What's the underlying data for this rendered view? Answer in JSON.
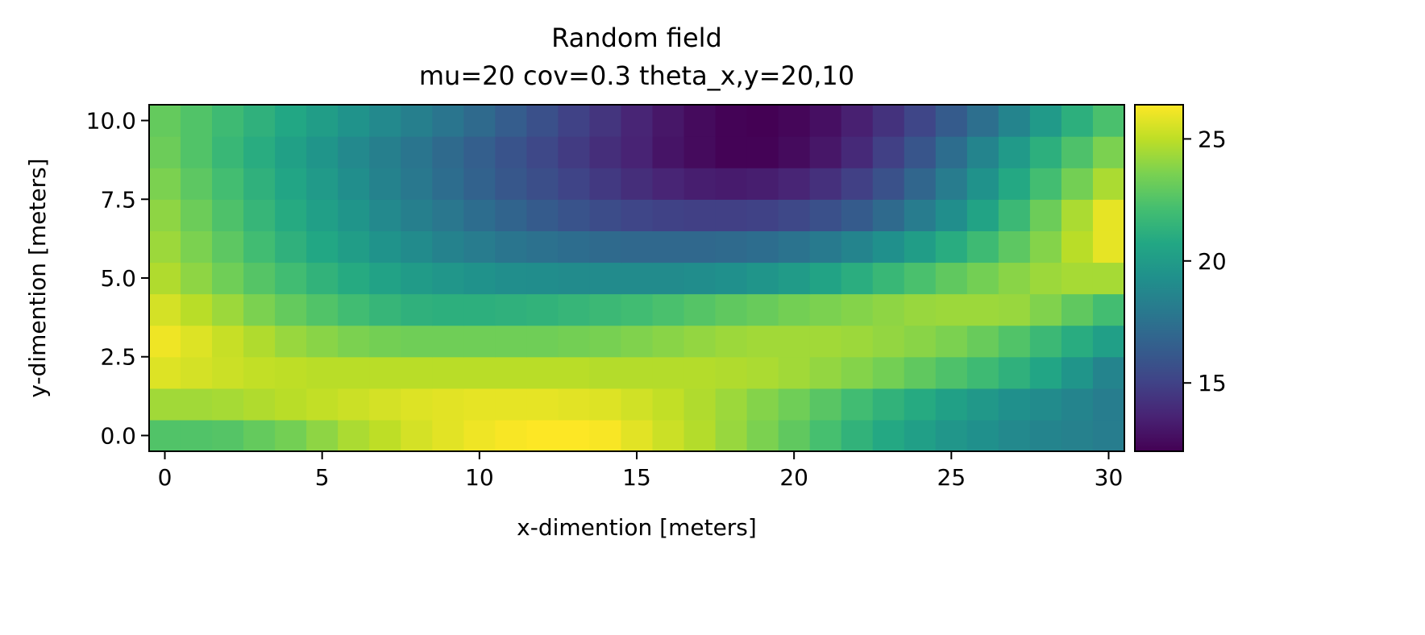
{
  "chart_data": {
    "type": "heatmap",
    "title": "Random field",
    "subtitle": "mu=20 cov=0.3 theta_x,y=20,10",
    "xlabel": "x-dimention [meters]",
    "ylabel": "y-dimention [meters]",
    "xlim": [
      -0.5,
      30.5
    ],
    "ylim": [
      -0.5,
      10.5
    ],
    "x_ticks": [
      0,
      5,
      10,
      15,
      20,
      25,
      30
    ],
    "x_tick_labels": [
      "0",
      "5",
      "10",
      "15",
      "20",
      "25",
      "30"
    ],
    "y_ticks": [
      0.0,
      2.5,
      5.0,
      7.5,
      10.0
    ],
    "y_tick_labels": [
      "0.0",
      "2.5",
      "5.0",
      "7.5",
      "10.0"
    ],
    "colormap": "viridis",
    "clim": [
      12.2,
      26.4
    ],
    "colorbar_ticks": [
      15,
      20,
      25
    ],
    "colorbar_tick_labels": [
      "15",
      "20",
      "25"
    ],
    "grid": false,
    "x": [
      0,
      1,
      2,
      3,
      4,
      5,
      6,
      7,
      8,
      9,
      10,
      11,
      12,
      13,
      14,
      15,
      16,
      17,
      18,
      19,
      20,
      21,
      22,
      23,
      24,
      25,
      26,
      27,
      28,
      29,
      30
    ],
    "y": [
      0,
      1,
      2,
      3,
      4,
      5,
      6,
      7,
      8,
      9,
      10
    ],
    "values": [
      [
        22.5,
        22.5,
        22.6,
        23.0,
        23.4,
        24.0,
        24.6,
        25.0,
        25.5,
        25.8,
        26.1,
        26.3,
        26.4,
        26.4,
        26.3,
        25.8,
        25.3,
        24.8,
        24.2,
        23.6,
        22.9,
        22.2,
        21.4,
        20.8,
        20.2,
        19.7,
        19.3,
        18.9,
        18.6,
        18.4,
        18.2
      ],
      [
        24.4,
        24.4,
        24.5,
        24.7,
        24.9,
        25.1,
        25.3,
        25.5,
        25.7,
        25.8,
        25.9,
        25.9,
        25.9,
        25.8,
        25.7,
        25.4,
        25.1,
        24.7,
        24.3,
        23.8,
        23.3,
        22.7,
        22.0,
        21.4,
        20.9,
        20.3,
        19.8,
        19.3,
        19.0,
        18.6,
        18.2
      ],
      [
        25.7,
        25.5,
        25.3,
        25.1,
        25.0,
        24.9,
        24.9,
        24.9,
        24.9,
        24.9,
        24.9,
        24.9,
        24.9,
        24.9,
        24.8,
        24.8,
        24.8,
        24.8,
        24.7,
        24.6,
        24.4,
        24.1,
        23.8,
        23.4,
        22.9,
        22.4,
        21.9,
        21.3,
        20.6,
        19.6,
        18.6
      ],
      [
        26.1,
        25.7,
        25.2,
        24.7,
        24.2,
        23.9,
        23.6,
        23.4,
        23.3,
        23.3,
        23.3,
        23.3,
        23.3,
        23.4,
        23.5,
        23.7,
        23.9,
        24.1,
        24.3,
        24.4,
        24.4,
        24.4,
        24.3,
        24.1,
        23.9,
        23.6,
        23.1,
        22.5,
        21.8,
        21.0,
        20.2
      ],
      [
        25.5,
        24.9,
        24.3,
        23.6,
        23.0,
        22.5,
        22.0,
        21.6,
        21.3,
        21.2,
        21.2,
        21.3,
        21.4,
        21.6,
        21.8,
        22.0,
        22.3,
        22.6,
        22.9,
        23.1,
        23.4,
        23.6,
        23.8,
        24.0,
        24.2,
        24.3,
        24.3,
        24.2,
        23.7,
        22.9,
        22.1
      ],
      [
        24.7,
        24.0,
        23.3,
        22.6,
        22.0,
        21.4,
        20.9,
        20.4,
        20.0,
        19.7,
        19.4,
        19.2,
        19.1,
        19.0,
        19.0,
        19.0,
        19.0,
        19.1,
        19.3,
        19.6,
        20.0,
        20.5,
        21.1,
        21.7,
        22.3,
        22.9,
        23.4,
        23.9,
        24.3,
        24.5,
        24.5
      ],
      [
        24.3,
        23.6,
        22.8,
        22.0,
        21.3,
        20.7,
        20.1,
        19.5,
        19.0,
        18.5,
        18.1,
        17.7,
        17.5,
        17.3,
        17.1,
        17.0,
        17.0,
        17.0,
        17.1,
        17.3,
        17.6,
        18.0,
        18.6,
        19.3,
        20.1,
        21.0,
        21.9,
        22.8,
        23.8,
        24.9,
        25.9
      ],
      [
        24.0,
        23.2,
        22.4,
        21.6,
        20.9,
        20.2,
        19.6,
        18.9,
        18.3,
        17.8,
        17.3,
        16.8,
        16.3,
        15.9,
        15.5,
        15.2,
        15.0,
        14.9,
        14.9,
        15.0,
        15.3,
        15.7,
        16.3,
        17.1,
        18.1,
        19.2,
        20.5,
        21.8,
        23.2,
        24.6,
        25.9
      ],
      [
        23.6,
        22.8,
        22.1,
        21.3,
        20.6,
        19.9,
        19.2,
        18.5,
        17.9,
        17.3,
        16.7,
        16.1,
        15.6,
        15.1,
        14.6,
        14.1,
        13.7,
        13.4,
        13.3,
        13.4,
        13.7,
        14.2,
        14.9,
        15.8,
        16.9,
        18.1,
        19.4,
        20.8,
        22.1,
        23.4,
        24.6
      ],
      [
        23.2,
        22.5,
        21.7,
        21.0,
        20.3,
        19.6,
        18.9,
        18.3,
        17.7,
        17.1,
        16.5,
        15.9,
        15.3,
        14.7,
        14.1,
        13.6,
        13.0,
        12.6,
        12.3,
        12.3,
        12.6,
        13.1,
        13.9,
        14.9,
        16.0,
        17.3,
        18.6,
        19.9,
        21.2,
        22.4,
        23.6
      ],
      [
        23.0,
        22.5,
        21.9,
        21.3,
        20.7,
        20.1,
        19.5,
        18.9,
        18.3,
        17.7,
        17.1,
        16.4,
        15.7,
        15.0,
        14.4,
        13.7,
        13.1,
        12.6,
        12.3,
        12.2,
        12.4,
        12.8,
        13.5,
        14.3,
        15.2,
        16.3,
        17.4,
        18.6,
        19.9,
        21.2,
        22.3
      ]
    ]
  }
}
